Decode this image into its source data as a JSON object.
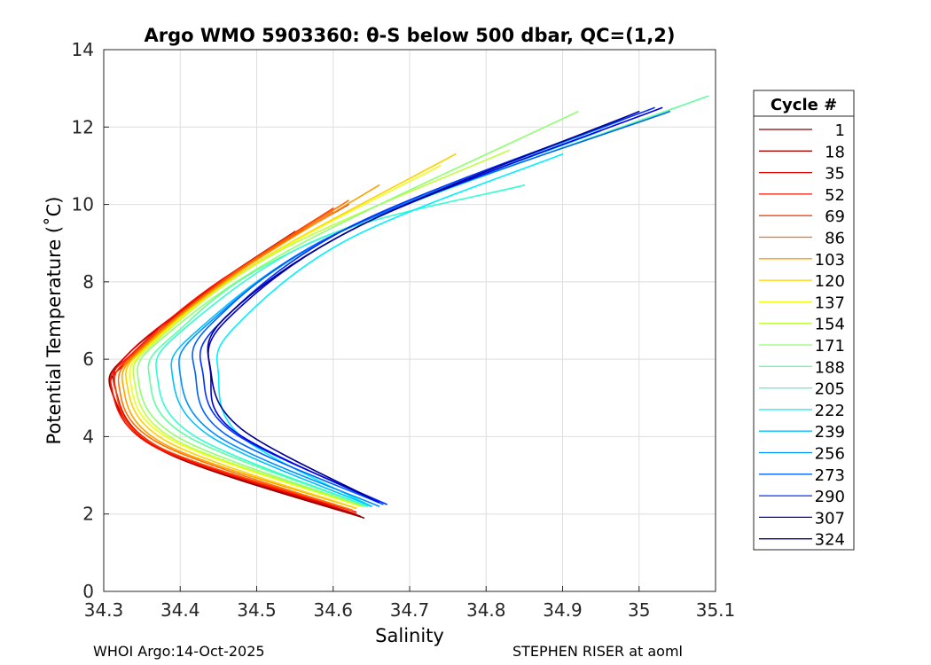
{
  "chart_data": {
    "type": "line",
    "title": "Argo WMO 5903360: θ-S below 500 dbar,  QC=(1,2)",
    "xlabel": "Salinity",
    "ylabel": "Potential Temperature (˚C)",
    "xlim": [
      34.3,
      35.1
    ],
    "ylim": [
      0,
      14
    ],
    "xticks": [
      34.3,
      34.4,
      34.5,
      34.6,
      34.7,
      34.8,
      34.9,
      35,
      35.1
    ],
    "xtick_labels": [
      "34.3",
      "34.4",
      "34.5",
      "34.6",
      "34.7",
      "34.8",
      "34.9",
      "35",
      "35.1"
    ],
    "yticks": [
      0,
      2,
      4,
      6,
      8,
      10,
      12,
      14
    ],
    "ytick_labels": [
      "0",
      "2",
      "4",
      "6",
      "8",
      "10",
      "12",
      "14"
    ],
    "grid": true,
    "legend": {
      "title": "Cycle #",
      "placement": "outside-right",
      "entries": [
        "1",
        "18",
        "35",
        "52",
        "69",
        "86",
        "103",
        "120",
        "137",
        "154",
        "171",
        "188",
        "205",
        "222",
        "239",
        "256",
        "273",
        "290",
        "307",
        "324"
      ],
      "colors": [
        "#800000",
        "#b00000",
        "#e00000",
        "#ff1000",
        "#ff4000",
        "#ff7000",
        "#ffa000",
        "#ffd000",
        "#f0ff10",
        "#c0ff40",
        "#90ff70",
        "#60ffa0",
        "#30ffd0",
        "#00f0ff",
        "#00c0ff",
        "#0090ff",
        "#0060ff",
        "#0030ff",
        "#0000e0",
        "#000090"
      ]
    },
    "series": [
      {
        "name": "1",
        "color": "#800000",
        "points": [
          [
            34.64,
            1.9
          ],
          [
            34.38,
            3.6
          ],
          [
            34.31,
            5.2
          ],
          [
            34.33,
            6.1
          ],
          [
            34.42,
            7.5
          ],
          [
            34.56,
            9.4
          ]
        ]
      },
      {
        "name": "18",
        "color": "#b00000",
        "points": [
          [
            34.635,
            1.95
          ],
          [
            34.38,
            3.62
          ],
          [
            34.31,
            5.2
          ],
          [
            34.34,
            6.1
          ],
          [
            34.43,
            7.7
          ],
          [
            34.55,
            9.3
          ]
        ]
      },
      {
        "name": "35",
        "color": "#e00000",
        "points": [
          [
            34.63,
            2.0
          ],
          [
            34.375,
            3.7
          ],
          [
            34.315,
            5.25
          ],
          [
            34.335,
            6.2
          ],
          [
            34.44,
            7.8
          ],
          [
            34.6,
            9.8
          ]
        ]
      },
      {
        "name": "52",
        "color": "#ff1000",
        "points": [
          [
            34.63,
            2.05
          ],
          [
            34.37,
            3.7
          ],
          [
            34.31,
            5.3
          ],
          [
            34.34,
            6.2
          ],
          [
            34.45,
            8.0
          ],
          [
            34.62,
            10.0
          ]
        ]
      },
      {
        "name": "69",
        "color": "#ff4000",
        "points": [
          [
            34.625,
            2.1
          ],
          [
            34.37,
            3.75
          ],
          [
            34.315,
            5.3
          ],
          [
            34.345,
            6.25
          ],
          [
            34.46,
            8.1
          ],
          [
            34.6,
            9.9
          ]
        ]
      },
      {
        "name": "86",
        "color": "#ff7000",
        "points": [
          [
            34.625,
            2.1
          ],
          [
            34.375,
            3.8
          ],
          [
            34.32,
            5.3
          ],
          [
            34.35,
            6.3
          ],
          [
            34.47,
            8.2
          ],
          [
            34.62,
            10.1
          ]
        ]
      },
      {
        "name": "103",
        "color": "#ffa000",
        "points": [
          [
            34.63,
            2.15
          ],
          [
            34.38,
            3.8
          ],
          [
            34.325,
            5.35
          ],
          [
            34.355,
            6.35
          ],
          [
            34.48,
            8.3
          ],
          [
            34.66,
            10.5
          ]
        ]
      },
      {
        "name": "120",
        "color": "#ffd000",
        "points": [
          [
            34.63,
            2.15
          ],
          [
            34.385,
            3.85
          ],
          [
            34.33,
            5.4
          ],
          [
            34.36,
            6.4
          ],
          [
            34.5,
            8.5
          ],
          [
            34.76,
            11.3
          ]
        ]
      },
      {
        "name": "137",
        "color": "#f0ff10",
        "points": [
          [
            34.635,
            2.2
          ],
          [
            34.39,
            3.9
          ],
          [
            34.335,
            5.4
          ],
          [
            34.365,
            6.45
          ],
          [
            34.51,
            8.6
          ],
          [
            34.74,
            11.0
          ]
        ]
      },
      {
        "name": "154",
        "color": "#c0ff40",
        "points": [
          [
            34.64,
            2.2
          ],
          [
            34.395,
            3.9
          ],
          [
            34.34,
            5.45
          ],
          [
            34.37,
            6.5
          ],
          [
            34.53,
            8.8
          ],
          [
            34.83,
            11.4
          ]
        ]
      },
      {
        "name": "171",
        "color": "#90ff70",
        "points": [
          [
            34.64,
            2.2
          ],
          [
            34.4,
            3.95
          ],
          [
            34.345,
            5.5
          ],
          [
            34.38,
            6.6
          ],
          [
            34.55,
            8.9
          ],
          [
            34.92,
            12.4
          ]
        ]
      },
      {
        "name": "188",
        "color": "#60ffa0",
        "points": [
          [
            34.645,
            2.2
          ],
          [
            34.41,
            4.0
          ],
          [
            34.36,
            5.5
          ],
          [
            34.39,
            6.6
          ],
          [
            34.57,
            9.0
          ],
          [
            35.09,
            12.8
          ]
        ]
      },
      {
        "name": "205",
        "color": "#30ffd0",
        "points": [
          [
            34.645,
            2.2
          ],
          [
            34.42,
            4.0
          ],
          [
            34.37,
            5.55
          ],
          [
            34.4,
            6.7
          ],
          [
            34.58,
            9.1
          ],
          [
            34.85,
            10.5
          ]
        ]
      },
      {
        "name": "222",
        "color": "#00f0ff",
        "points": [
          [
            34.65,
            2.2
          ],
          [
            34.48,
            4.0
          ],
          [
            34.45,
            5.6
          ],
          [
            34.47,
            6.8
          ],
          [
            34.62,
            9.1
          ],
          [
            34.9,
            11.3
          ]
        ]
      },
      {
        "name": "239",
        "color": "#00c0ff",
        "points": [
          [
            34.65,
            2.2
          ],
          [
            34.44,
            4.0
          ],
          [
            34.39,
            5.55
          ],
          [
            34.42,
            6.7
          ],
          [
            34.6,
            9.2
          ],
          [
            34.95,
            11.9
          ]
        ]
      },
      {
        "name": "256",
        "color": "#0090ff",
        "points": [
          [
            34.66,
            2.2
          ],
          [
            34.45,
            4.0
          ],
          [
            34.4,
            5.6
          ],
          [
            34.43,
            6.8
          ],
          [
            34.61,
            9.3
          ],
          [
            34.98,
            12.2
          ]
        ]
      },
      {
        "name": "273",
        "color": "#0060ff",
        "points": [
          [
            34.665,
            2.25
          ],
          [
            34.46,
            4.05
          ],
          [
            34.42,
            5.6
          ],
          [
            34.44,
            6.9
          ],
          [
            34.62,
            9.4
          ],
          [
            35.04,
            12.4
          ]
        ]
      },
      {
        "name": "290",
        "color": "#0030ff",
        "points": [
          [
            34.67,
            2.25
          ],
          [
            34.47,
            4.1
          ],
          [
            34.43,
            5.6
          ],
          [
            34.45,
            6.9
          ],
          [
            34.63,
            9.5
          ],
          [
            35.02,
            12.5
          ]
        ]
      },
      {
        "name": "307",
        "color": "#0000e0",
        "points": [
          [
            34.66,
            2.3
          ],
          [
            34.47,
            4.15
          ],
          [
            34.44,
            5.6
          ],
          [
            34.46,
            7.0
          ],
          [
            34.64,
            9.5
          ],
          [
            35.03,
            12.5
          ]
        ]
      },
      {
        "name": "324",
        "color": "#000090",
        "points": [
          [
            34.65,
            2.4
          ],
          [
            34.48,
            4.2
          ],
          [
            34.44,
            5.7
          ],
          [
            34.46,
            7.1
          ],
          [
            34.64,
            9.5
          ],
          [
            35.0,
            12.4
          ]
        ]
      }
    ]
  },
  "footer": {
    "left": "WHOI Argo:14-Oct-2025",
    "right": "STEPHEN RISER at aoml"
  }
}
